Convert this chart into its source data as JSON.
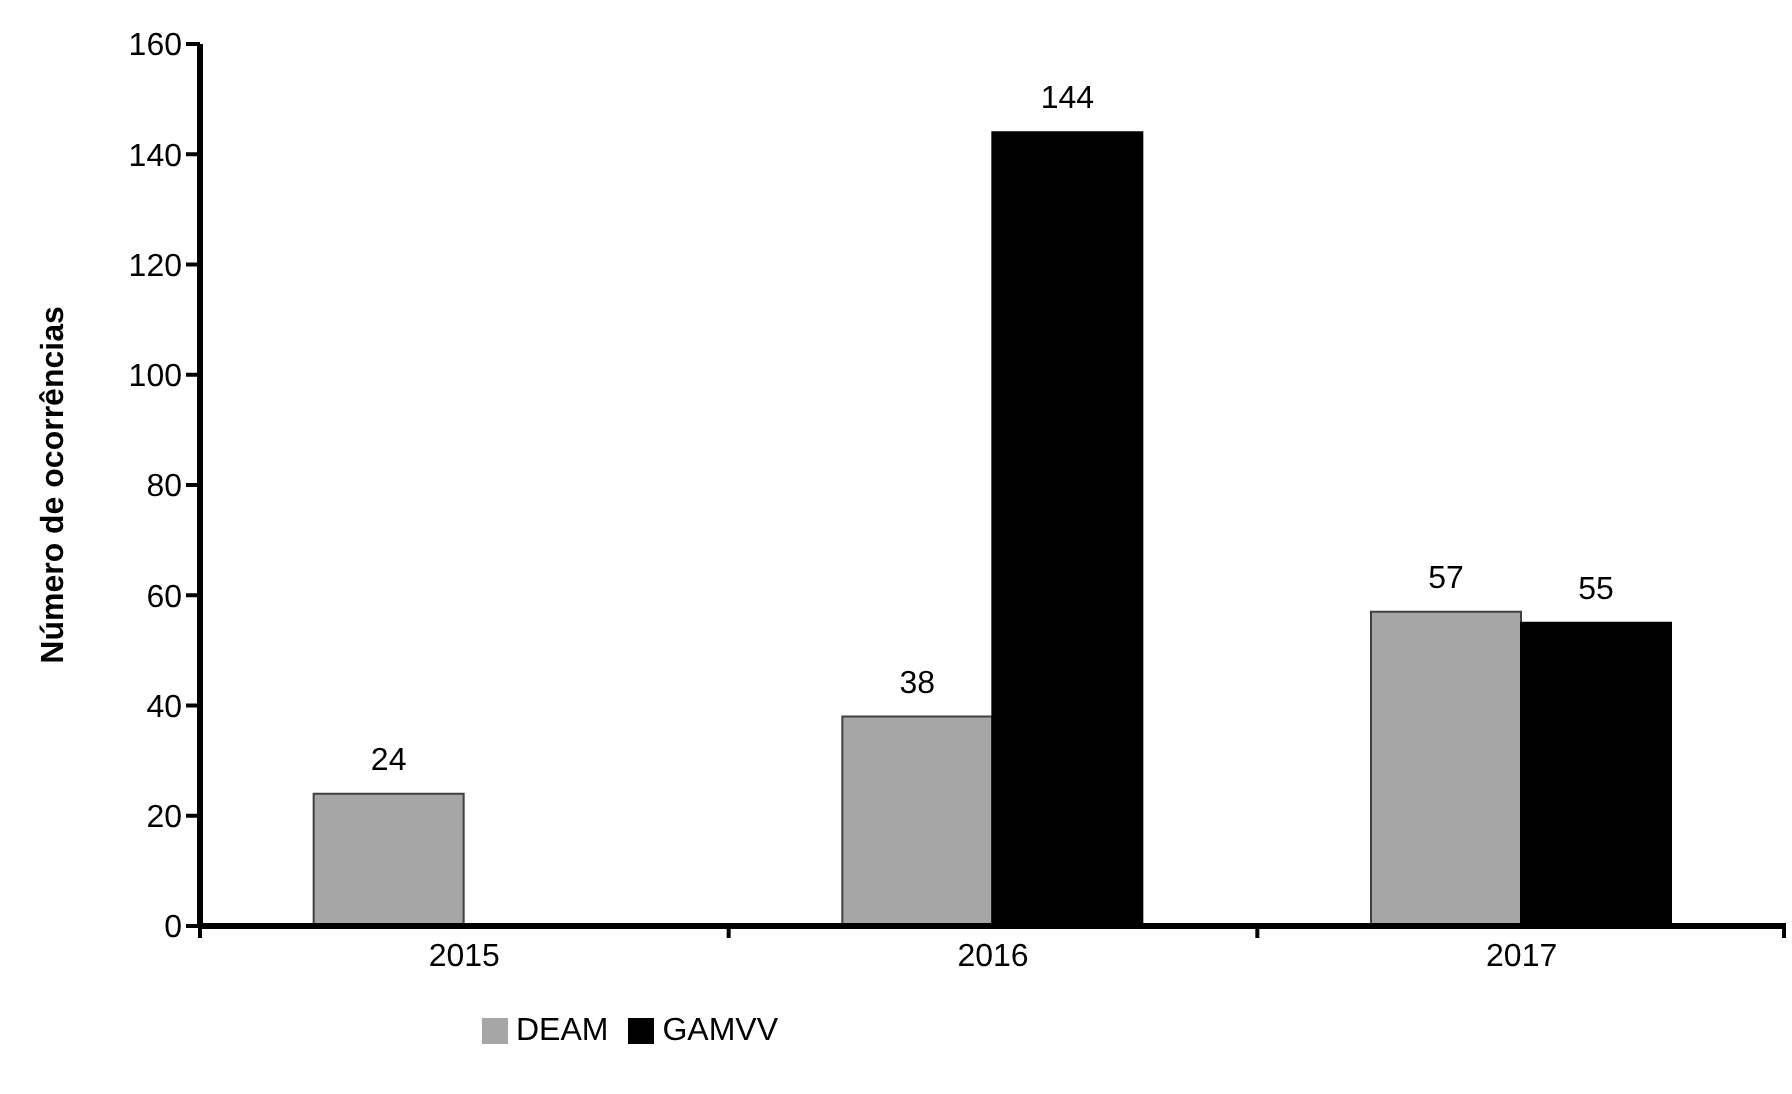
{
  "chart_data": {
    "type": "bar",
    "ylabel": "Número de ocorrências",
    "categories": [
      "2015",
      "2016",
      "2017"
    ],
    "series": [
      {
        "name": "DEAM",
        "color": "#a6a6a6",
        "values": [
          24,
          38,
          57
        ]
      },
      {
        "name": "GAMVV",
        "color": "#000000",
        "values": [
          null,
          144,
          55
        ]
      }
    ],
    "ylim": [
      0,
      160
    ],
    "yticks": [
      0,
      20,
      40,
      60,
      80,
      100,
      120,
      140,
      160
    ],
    "grid": false,
    "legend": "bottom",
    "data_labels": true
  }
}
